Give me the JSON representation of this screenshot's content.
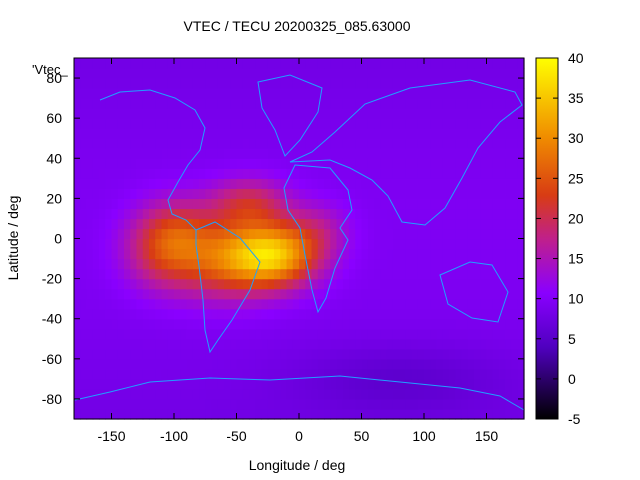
{
  "chart_data": {
    "type": "heatmap",
    "title": "VTEC / TECU 20200325_085.63000",
    "xlabel": "Longitude / deg",
    "ylabel": "Latitude / deg",
    "series_label": "'Vtec_",
    "xlim": [
      -180,
      180
    ],
    "ylim": [
      -90,
      90
    ],
    "x_ticks": [
      -150,
      -100,
      -50,
      0,
      50,
      100,
      150
    ],
    "y_ticks": [
      -80,
      -60,
      -40,
      -20,
      0,
      20,
      40,
      60,
      80
    ],
    "colorbar": {
      "range": [
        -5,
        40
      ],
      "ticks": [
        -5,
        0,
        5,
        10,
        15,
        20,
        25,
        30,
        35,
        40
      ]
    },
    "grid": false,
    "background_level": 8,
    "anomalies": [
      {
        "lon": -110,
        "lat": -5,
        "amp": 10,
        "sx": 22,
        "sy": 14
      },
      {
        "lon": -60,
        "lat": -10,
        "amp": 14,
        "sx": 30,
        "sy": 14
      },
      {
        "lon": -20,
        "lat": -8,
        "amp": 22,
        "sx": 25,
        "sy": 11
      },
      {
        "lon": -40,
        "lat": 18,
        "amp": 10,
        "sx": 22,
        "sy": 9
      },
      {
        "lon": 15,
        "lat": 5,
        "amp": 5,
        "sx": 18,
        "sy": 10
      },
      {
        "lon": -95,
        "lat": 5,
        "amp": 6,
        "sx": 20,
        "sy": 12
      },
      {
        "lon": 80,
        "lat": -70,
        "amp": -3,
        "sx": 60,
        "sy": 12
      }
    ]
  }
}
